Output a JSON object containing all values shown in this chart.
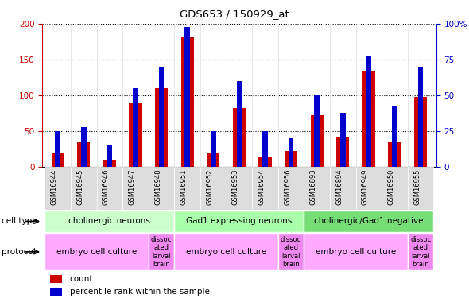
{
  "title": "GDS653 / 150929_at",
  "samples": [
    "GSM16944",
    "GSM16945",
    "GSM16946",
    "GSM16947",
    "GSM16948",
    "GSM16951",
    "GSM16952",
    "GSM16953",
    "GSM16954",
    "GSM16956",
    "GSM16893",
    "GSM16894",
    "GSM16949",
    "GSM16950",
    "GSM16955"
  ],
  "count": [
    20,
    35,
    10,
    90,
    110,
    182,
    20,
    82,
    15,
    22,
    72,
    42,
    135,
    35,
    98
  ],
  "percentile": [
    25,
    28,
    15,
    55,
    70,
    98,
    25,
    60,
    25,
    20,
    50,
    38,
    78,
    42,
    70
  ],
  "red_color": "#cc0000",
  "blue_color": "#0000cc",
  "ylim_left": [
    0,
    200
  ],
  "ylim_right": [
    0,
    100
  ],
  "yticks_left": [
    0,
    50,
    100,
    150,
    200
  ],
  "yticks_right": [
    0,
    25,
    50,
    75,
    100
  ],
  "ytick_labels_right": [
    "0",
    "25",
    "50",
    "75",
    "100%"
  ],
  "cell_type_groups": [
    {
      "label": "cholinergic neurons",
      "start": 0,
      "end": 5,
      "color": "#ccffcc"
    },
    {
      "label": "Gad1 expressing neurons",
      "start": 5,
      "end": 10,
      "color": "#aaffaa"
    },
    {
      "label": "cholinergic/Gad1 negative",
      "start": 10,
      "end": 15,
      "color": "#77dd77"
    }
  ],
  "protocol_groups": [
    {
      "label": "embryo cell culture",
      "start": 0,
      "end": 4,
      "color": "#ffaaff"
    },
    {
      "label": "dissoc\nated\nlarval\nbrain",
      "start": 4,
      "end": 5,
      "color": "#ee88ee"
    },
    {
      "label": "embryo cell culture",
      "start": 5,
      "end": 9,
      "color": "#ffaaff"
    },
    {
      "label": "dissoc\nated\nlarval\nbrain",
      "start": 9,
      "end": 10,
      "color": "#ee88ee"
    },
    {
      "label": "embryo cell culture",
      "start": 10,
      "end": 14,
      "color": "#ffaaff"
    },
    {
      "label": "dissoc\nated\nlarval\nbrain",
      "start": 14,
      "end": 15,
      "color": "#ee88ee"
    }
  ]
}
